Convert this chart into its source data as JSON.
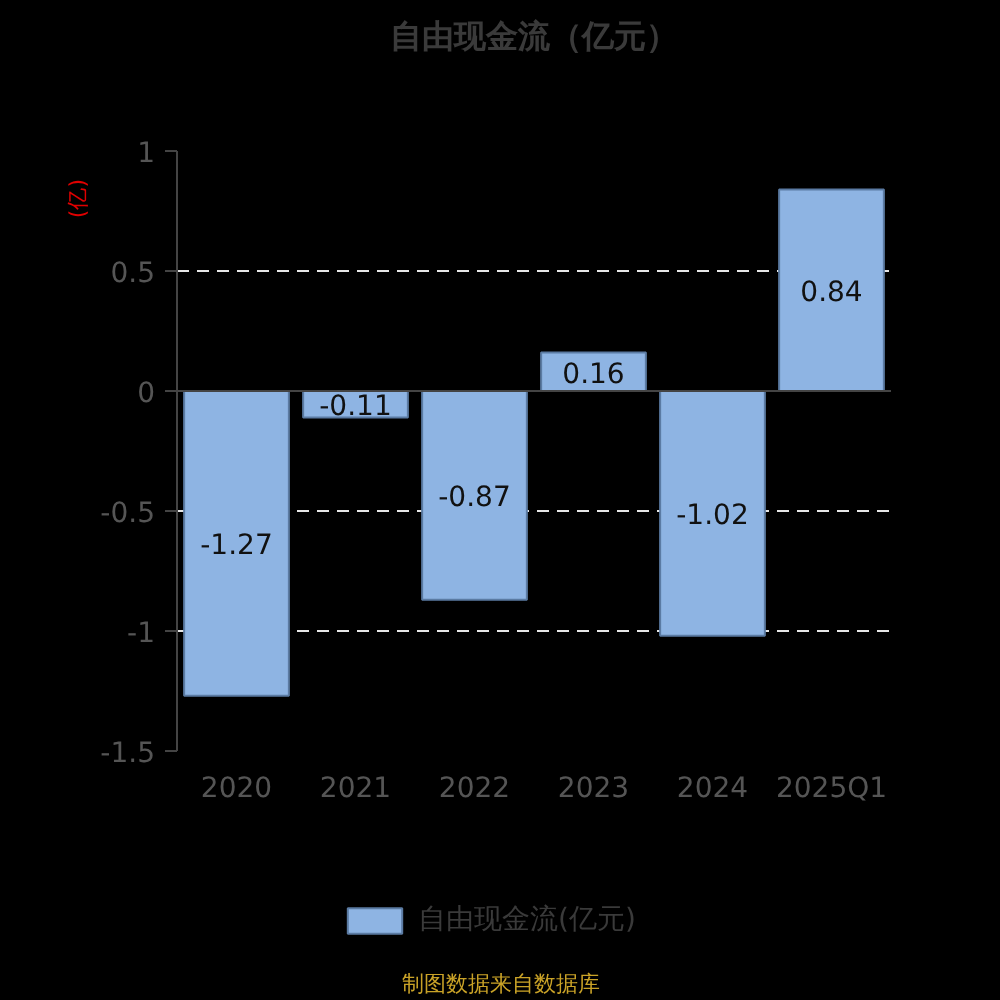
{
  "chart_data": {
    "type": "bar",
    "title": "自由现金流（亿元）",
    "ylabel": "(亿)",
    "categories": [
      "2020",
      "2021",
      "2022",
      "2023",
      "2024",
      "2025Q1"
    ],
    "series": [
      {
        "name": "自由现金流(亿元)",
        "color": "#8eb4e3",
        "values": [
          -1.27,
          -0.11,
          -0.87,
          0.16,
          -1.02,
          0.84
        ]
      }
    ],
    "ylim": [
      -1.5,
      1
    ],
    "yticks": [
      -1.5,
      -1,
      -0.5,
      0,
      0.5,
      1
    ],
    "grid": "y",
    "legend": "bottom",
    "data_labels": true,
    "annotations": [
      "制图数据来自数据库"
    ]
  }
}
